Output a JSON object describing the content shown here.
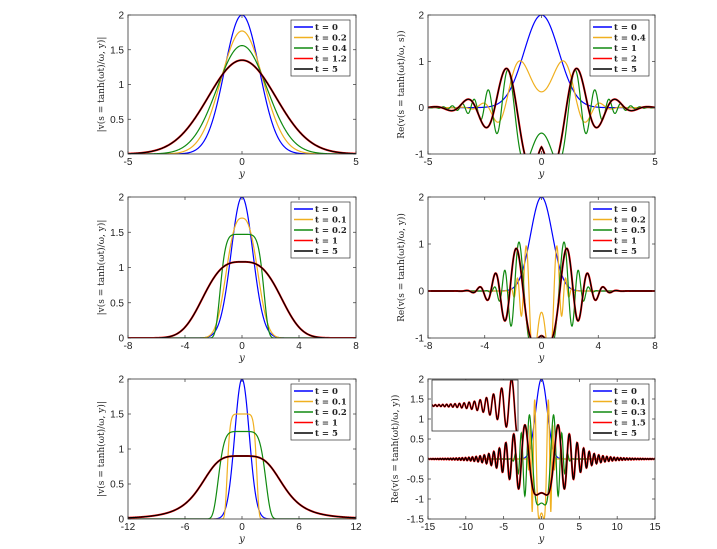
{
  "chart_data": [
    {
      "type": "line",
      "xlabel": "y",
      "ylabel": "|v(s = tanh(ωt)/ω, y)|",
      "xlim": [
        -5,
        5
      ],
      "ylim": [
        0,
        2
      ],
      "xticks": [
        "-5",
        "0",
        "5"
      ],
      "yticks": [
        "0",
        "0.5",
        "1",
        "1.5",
        "2"
      ],
      "grid": false,
      "legend": "top-right",
      "series": [
        {
          "name": "t = 0",
          "color": "#0000ff",
          "model": {
            "shape": "gauss",
            "amp": 2,
            "w": 1.08,
            "p": 2
          }
        },
        {
          "name": "t = 0.2",
          "color": "#f0b020",
          "model": {
            "shape": "gauss",
            "amp": 1.77,
            "w": 1.3,
            "p": 2
          }
        },
        {
          "name": "t = 0.4",
          "color": "#108a10",
          "model": {
            "shape": "gauss",
            "amp": 1.56,
            "w": 1.55,
            "p": 2
          }
        },
        {
          "name": "t = 1.2",
          "color": "#ff0000",
          "model": {
            "shape": "gauss",
            "amp": 1.35,
            "w": 2.1,
            "p": 2
          }
        },
        {
          "name": "t = 5",
          "color": "#000000",
          "model": {
            "shape": "gauss",
            "amp": 1.35,
            "w": 2.1,
            "p": 2
          }
        }
      ]
    },
    {
      "type": "line",
      "xlabel": "y",
      "ylabel": "Re(v(s = tanh(ωt)/ω, s))",
      "xlim": [
        -5,
        5
      ],
      "ylim": [
        -1,
        2
      ],
      "xticks": [
        "-5",
        "0",
        "5"
      ],
      "yticks": [
        "-1",
        "0",
        "1",
        "2"
      ],
      "grid": false,
      "legend": "top-right",
      "series": [
        {
          "name": "t = 0",
          "color": "#0000ff",
          "model": {
            "shape": "gauss",
            "amp": 2,
            "w": 1.08,
            "p": 2
          }
        },
        {
          "name": "t = 0.4",
          "color": "#f0b020",
          "model": {
            "shape": "gauss",
            "amp": 1.56,
            "w": 1.55,
            "p": 2,
            "a": 1.12,
            "b": -1.35,
            "q": 2
          }
        },
        {
          "name": "t = 1",
          "color": "#108a10",
          "model": {
            "shape": "gauss",
            "amp": 1.35,
            "w": 2.1,
            "p": 2,
            "a": 1.9,
            "b": 1.99,
            "q": 2
          }
        },
        {
          "name": "t = 2",
          "color": "#ff0000",
          "model": {
            "shape": "gauss",
            "amp": 1.35,
            "w": 2.3,
            "p": 2,
            "a": 2.19,
            "b": 2.25,
            "q": 1.3
          }
        },
        {
          "name": "t = 5",
          "color": "#000000",
          "model": {
            "shape": "gauss",
            "amp": 1.35,
            "w": 2.3,
            "p": 2,
            "a": 2.19,
            "b": 2.25,
            "q": 1.3
          }
        }
      ]
    },
    {
      "type": "line",
      "xlabel": "y",
      "ylabel": "|v(s = tanh(ωt)/ω, y)|",
      "xlim": [
        -8,
        8
      ],
      "ylim": [
        0,
        2
      ],
      "xticks": [
        "-8",
        "-4",
        "0",
        "4",
        "8"
      ],
      "yticks": [
        "0",
        "0.5",
        "1",
        "1.5",
        "2"
      ],
      "grid": false,
      "legend": "top-right",
      "series": [
        {
          "name": "t = 0",
          "color": "#0000ff",
          "model": {
            "shape": "gauss",
            "amp": 2,
            "w": 1.08,
            "p": 2
          }
        },
        {
          "name": "t = 0.1",
          "color": "#f0b020",
          "model": {
            "shape": "gauss",
            "amp": 1.7,
            "w": 1.35,
            "p": 2.6
          }
        },
        {
          "name": "t = 0.2",
          "color": "#108a10",
          "model": {
            "shape": "gauss",
            "amp": 1.47,
            "w": 1.6,
            "p": 6
          }
        },
        {
          "name": "t = 1",
          "color": "#ff0000",
          "model": {
            "shape": "gauss",
            "amp": 1.08,
            "w": 3.2,
            "p": 3
          }
        },
        {
          "name": "t = 5",
          "color": "#000000",
          "model": {
            "shape": "gauss",
            "amp": 1.08,
            "w": 3.2,
            "p": 3
          }
        }
      ]
    },
    {
      "type": "line",
      "xlabel": "y",
      "ylabel": "Re(v(s = tanh(ωt)/ω, y))",
      "xlim": [
        -8,
        8
      ],
      "ylim": [
        -1,
        2
      ],
      "xticks": [
        "-8",
        "-4",
        "0",
        "4",
        "8"
      ],
      "yticks": [
        "-1",
        "0",
        "1",
        "2"
      ],
      "grid": false,
      "legend": "top-right",
      "series": [
        {
          "name": "t = 0",
          "color": "#0000ff",
          "model": {
            "shape": "gauss",
            "amp": 2,
            "w": 1.08,
            "p": 2
          }
        },
        {
          "name": "t = 0.2",
          "color": "#f0b020",
          "model": {
            "shape": "gauss",
            "amp": 1.7,
            "w": 1.35,
            "p": 2.6,
            "a": 3.67,
            "b": 1.84,
            "q": 2
          }
        },
        {
          "name": "t = 0.5",
          "color": "#108a10",
          "model": {
            "shape": "gauss",
            "amp": 1.2,
            "w": 2.6,
            "p": 4,
            "a": 1.48,
            "b": 2.48,
            "q": 2
          }
        },
        {
          "name": "t = 1",
          "color": "#ff0000",
          "model": {
            "shape": "gauss",
            "amp": 1.08,
            "w": 3.2,
            "p": 3,
            "a": 1.34,
            "b": 2.65,
            "q": 1.69
          }
        },
        {
          "name": "t = 5",
          "color": "#000000",
          "model": {
            "shape": "gauss",
            "amp": 1.08,
            "w": 3.2,
            "p": 3,
            "a": 1.34,
            "b": 2.65,
            "q": 1.69
          }
        }
      ]
    },
    {
      "type": "line",
      "xlabel": "y",
      "ylabel": "|v(s = tanh(ωt)/ω, y)|",
      "xlim": [
        -12,
        12
      ],
      "ylim": [
        0,
        2
      ],
      "xticks": [
        "-12",
        "-6",
        "0",
        "6",
        "12"
      ],
      "yticks": [
        "0",
        "0.5",
        "1",
        "1.5",
        "2"
      ],
      "grid": false,
      "legend": "top-right",
      "series": [
        {
          "name": "t = 0",
          "color": "#0000ff",
          "model": {
            "shape": "gauss",
            "amp": 2,
            "w": 1.08,
            "p": 2
          }
        },
        {
          "name": "t = 0.1",
          "color": "#f0b020",
          "model": {
            "shape": "gauss",
            "amp": 1.5,
            "w": 1.6,
            "p": 8
          }
        },
        {
          "name": "t = 0.2",
          "color": "#108a10",
          "model": {
            "shape": "gauss",
            "amp": 1.25,
            "w": 2.6,
            "p": 6
          }
        },
        {
          "name": "t = 1",
          "color": "#ff0000",
          "model": {
            "shape": "lorentz",
            "amp": 0.9,
            "w": 4.5,
            "p": 4
          }
        },
        {
          "name": "t = 5",
          "color": "#000000",
          "model": {
            "shape": "lorentz",
            "amp": 0.9,
            "w": 4.5,
            "p": 4
          }
        }
      ]
    },
    {
      "type": "line",
      "xlabel": "y",
      "ylabel": "Re(v(s = tanh(ωt)/ω, y))",
      "xlim": [
        -15,
        15
      ],
      "ylim": [
        -1.5,
        2
      ],
      "xticks": [
        "-15",
        "-10",
        "-5",
        "0",
        "5",
        "10",
        "15"
      ],
      "yticks": [
        "-1.5",
        "-1",
        "-0.5",
        "0",
        "0.5",
        "1",
        "1.5",
        "2"
      ],
      "grid": false,
      "legend": "top-right",
      "series": [
        {
          "name": "t = 0",
          "color": "#0000ff",
          "model": {
            "shape": "gauss",
            "amp": 2,
            "w": 1.08,
            "p": 2
          }
        },
        {
          "name": "t = 0.1",
          "color": "#f0b020",
          "model": {
            "shape": "gauss",
            "amp": 1.5,
            "w": 1.6,
            "p": 8,
            "a": 4.4,
            "b": 2.69,
            "q": 2
          }
        },
        {
          "name": "t = 0.3",
          "color": "#108a10",
          "model": {
            "shape": "gauss",
            "amp": 1.15,
            "w": 3,
            "p": 5,
            "a": 1.34,
            "b": 2.85,
            "q": 2
          }
        },
        {
          "name": "t = 1.5",
          "color": "#ff0000",
          "model": {
            "shape": "lorentz",
            "amp": 0.9,
            "w": 4.5,
            "p": 4,
            "a": 0.72,
            "b": 2.8,
            "q": 2
          }
        },
        {
          "name": "t = 5",
          "color": "#000000",
          "model": {
            "shape": "lorentz",
            "amp": 0.9,
            "w": 4.5,
            "p": 4,
            "a": 0.72,
            "b": 2.8,
            "q": 2
          }
        }
      ],
      "inset": {
        "xlim": [
          -12,
          -3
        ],
        "ylim": [
          -0.6,
          0.6
        ],
        "series": [
          "t = 1.5",
          "t = 5"
        ]
      }
    }
  ]
}
